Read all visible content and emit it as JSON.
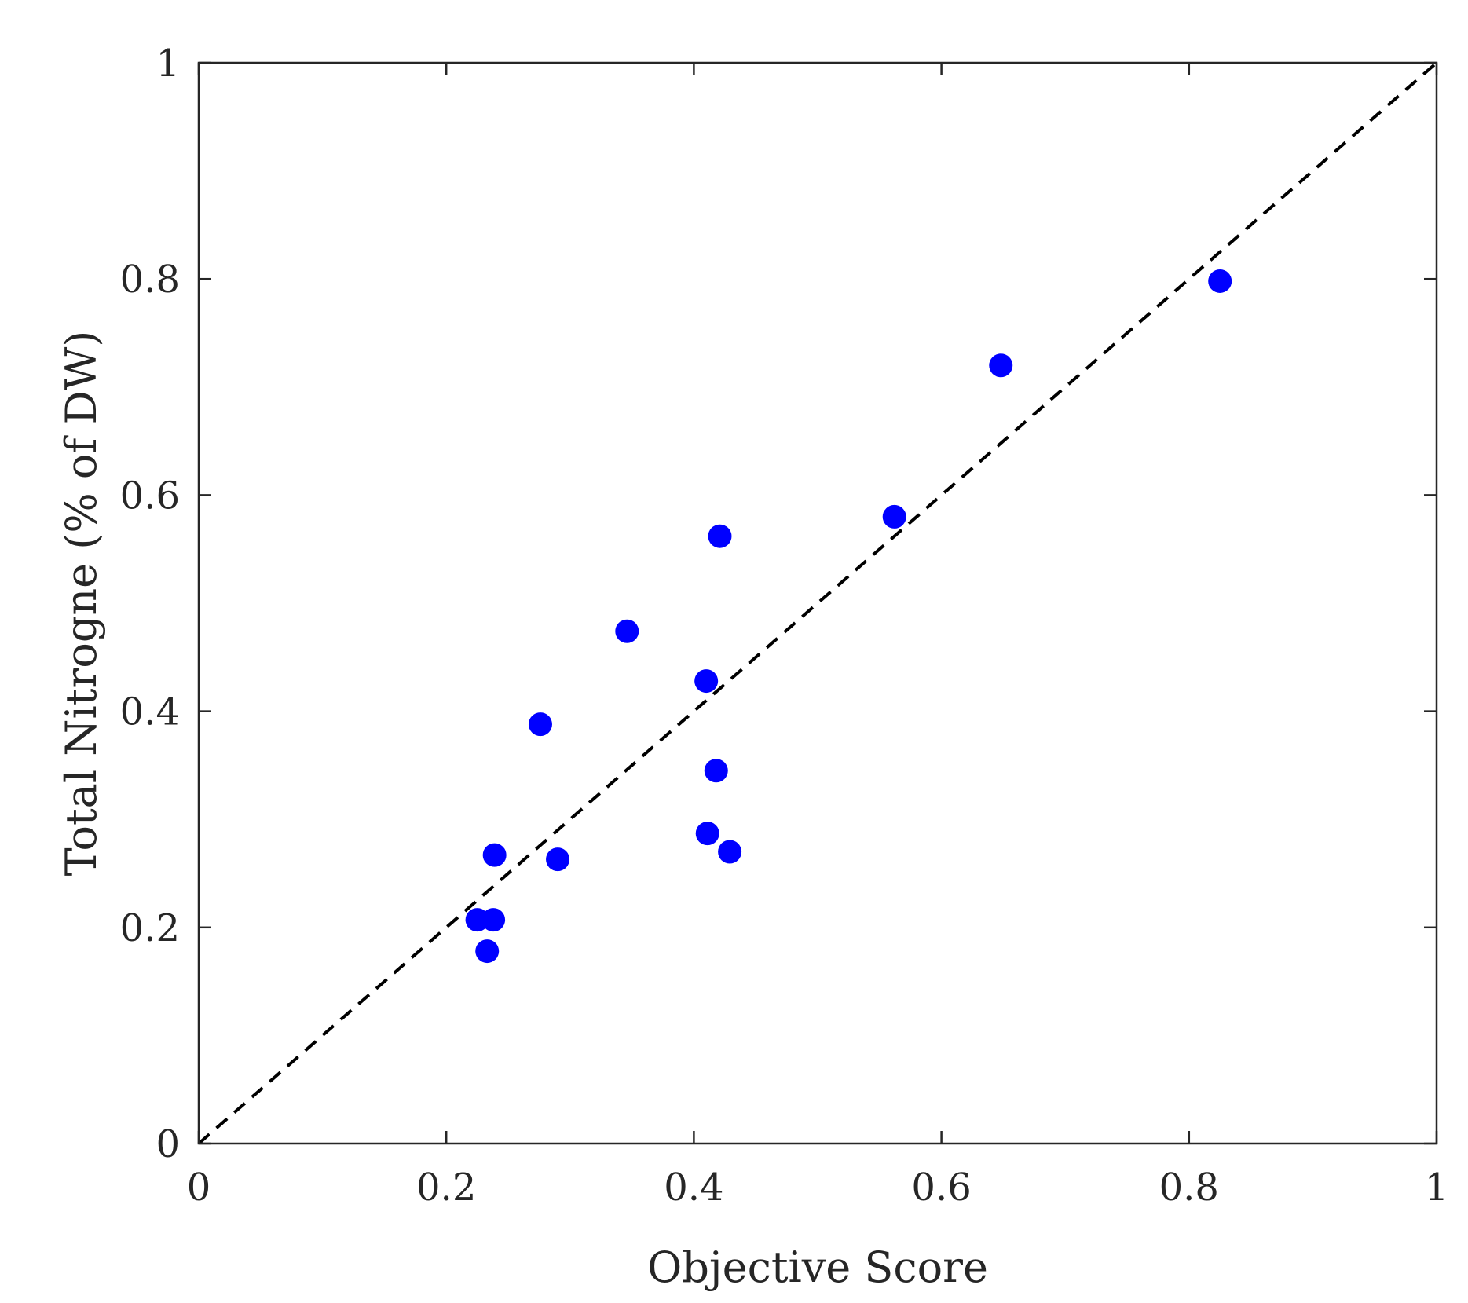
{
  "chart_data": {
    "type": "scatter",
    "xlabel": "Objective Score",
    "ylabel": "Total Nitrogne (% of DW)",
    "xlim": [
      0,
      1
    ],
    "ylim": [
      0,
      1
    ],
    "x_ticks": [
      "0",
      "0.2",
      "0.4",
      "0.6",
      "0.8",
      "1"
    ],
    "y_ticks": [
      "0",
      "0.2",
      "0.4",
      "0.6",
      "0.8",
      "1"
    ],
    "grid": false,
    "reference_line": {
      "style": "dashed",
      "from": [
        0,
        0
      ],
      "to": [
        1,
        1
      ],
      "color": "#000000"
    },
    "series": [
      {
        "color": "#0000ff",
        "points": [
          [
            0.225,
            0.207
          ],
          [
            0.238,
            0.207
          ],
          [
            0.233,
            0.178
          ],
          [
            0.239,
            0.267
          ],
          [
            0.29,
            0.263
          ],
          [
            0.276,
            0.388
          ],
          [
            0.346,
            0.474
          ],
          [
            0.41,
            0.428
          ],
          [
            0.421,
            0.562
          ],
          [
            0.418,
            0.345
          ],
          [
            0.411,
            0.287
          ],
          [
            0.429,
            0.27
          ],
          [
            0.562,
            0.58
          ],
          [
            0.648,
            0.72
          ],
          [
            0.825,
            0.798
          ]
        ]
      }
    ]
  }
}
